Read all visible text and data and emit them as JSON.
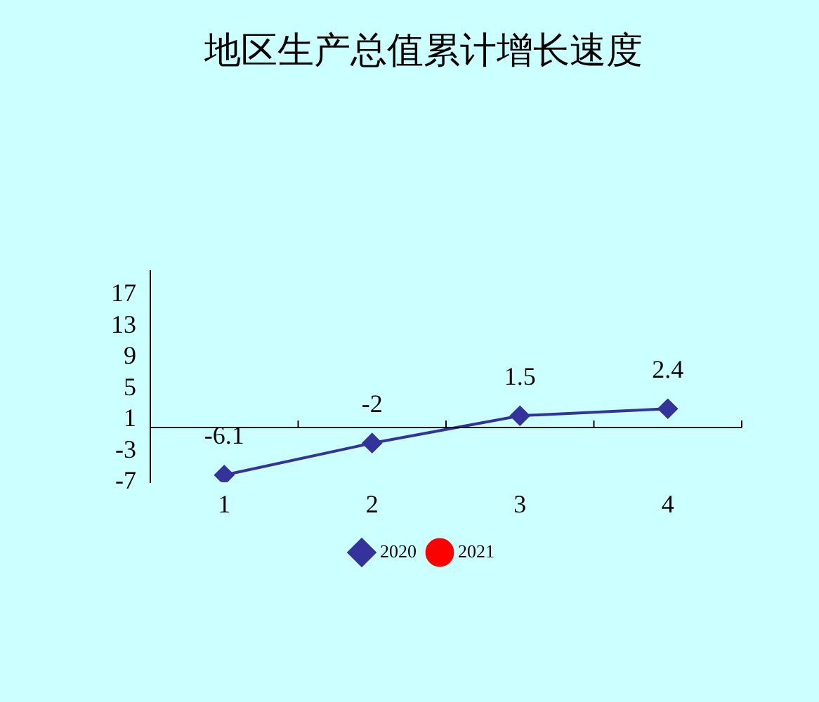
{
  "chart_data": {
    "type": "line",
    "title": "地区生产总值累计增长速度",
    "categories": [
      "1",
      "2",
      "3",
      "4"
    ],
    "series": [
      {
        "name": "2020",
        "color": "#333399",
        "values": [
          -6.1,
          -2,
          1.5,
          2.4
        ],
        "marker": "diamond"
      },
      {
        "name": "2021",
        "color": "#ff0000",
        "values": [
          null,
          null,
          null,
          null
        ],
        "marker": "circle"
      }
    ],
    "ylim": [
      -7,
      20
    ],
    "yticks": [
      -7,
      -3,
      1,
      5,
      9,
      13,
      17
    ],
    "grid": false,
    "legend": "bottom",
    "data_labels": true
  }
}
